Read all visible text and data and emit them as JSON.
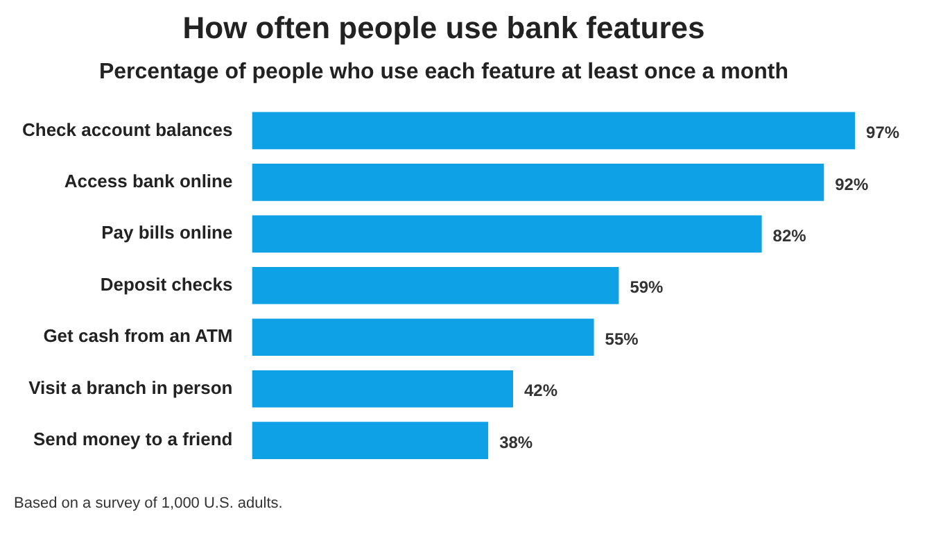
{
  "chart_data": {
    "type": "bar",
    "orientation": "horizontal",
    "title": "How often people use bank features",
    "subtitle": "Percentage of people who use each feature at least once a month",
    "categories": [
      "Check account balances",
      "Access bank online",
      "Pay bills online",
      "Deposit checks",
      "Get cash from an ATM",
      "Visit a branch in person",
      "Send money to a friend"
    ],
    "values": [
      97,
      92,
      82,
      59,
      55,
      42,
      38
    ],
    "value_labels": [
      "97%",
      "92%",
      "82%",
      "59%",
      "55%",
      "42%",
      "38%"
    ],
    "color": "#0ea1e6",
    "legend": false,
    "annotations": [
      "Based on a survey of 1,000 U.S. adults."
    ]
  }
}
